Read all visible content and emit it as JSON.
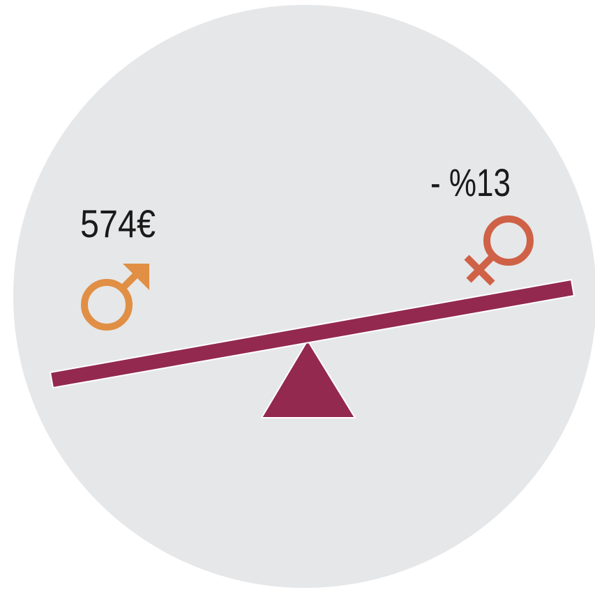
{
  "labels": {
    "male_value": "574€",
    "female_value": "- %13"
  }
}
